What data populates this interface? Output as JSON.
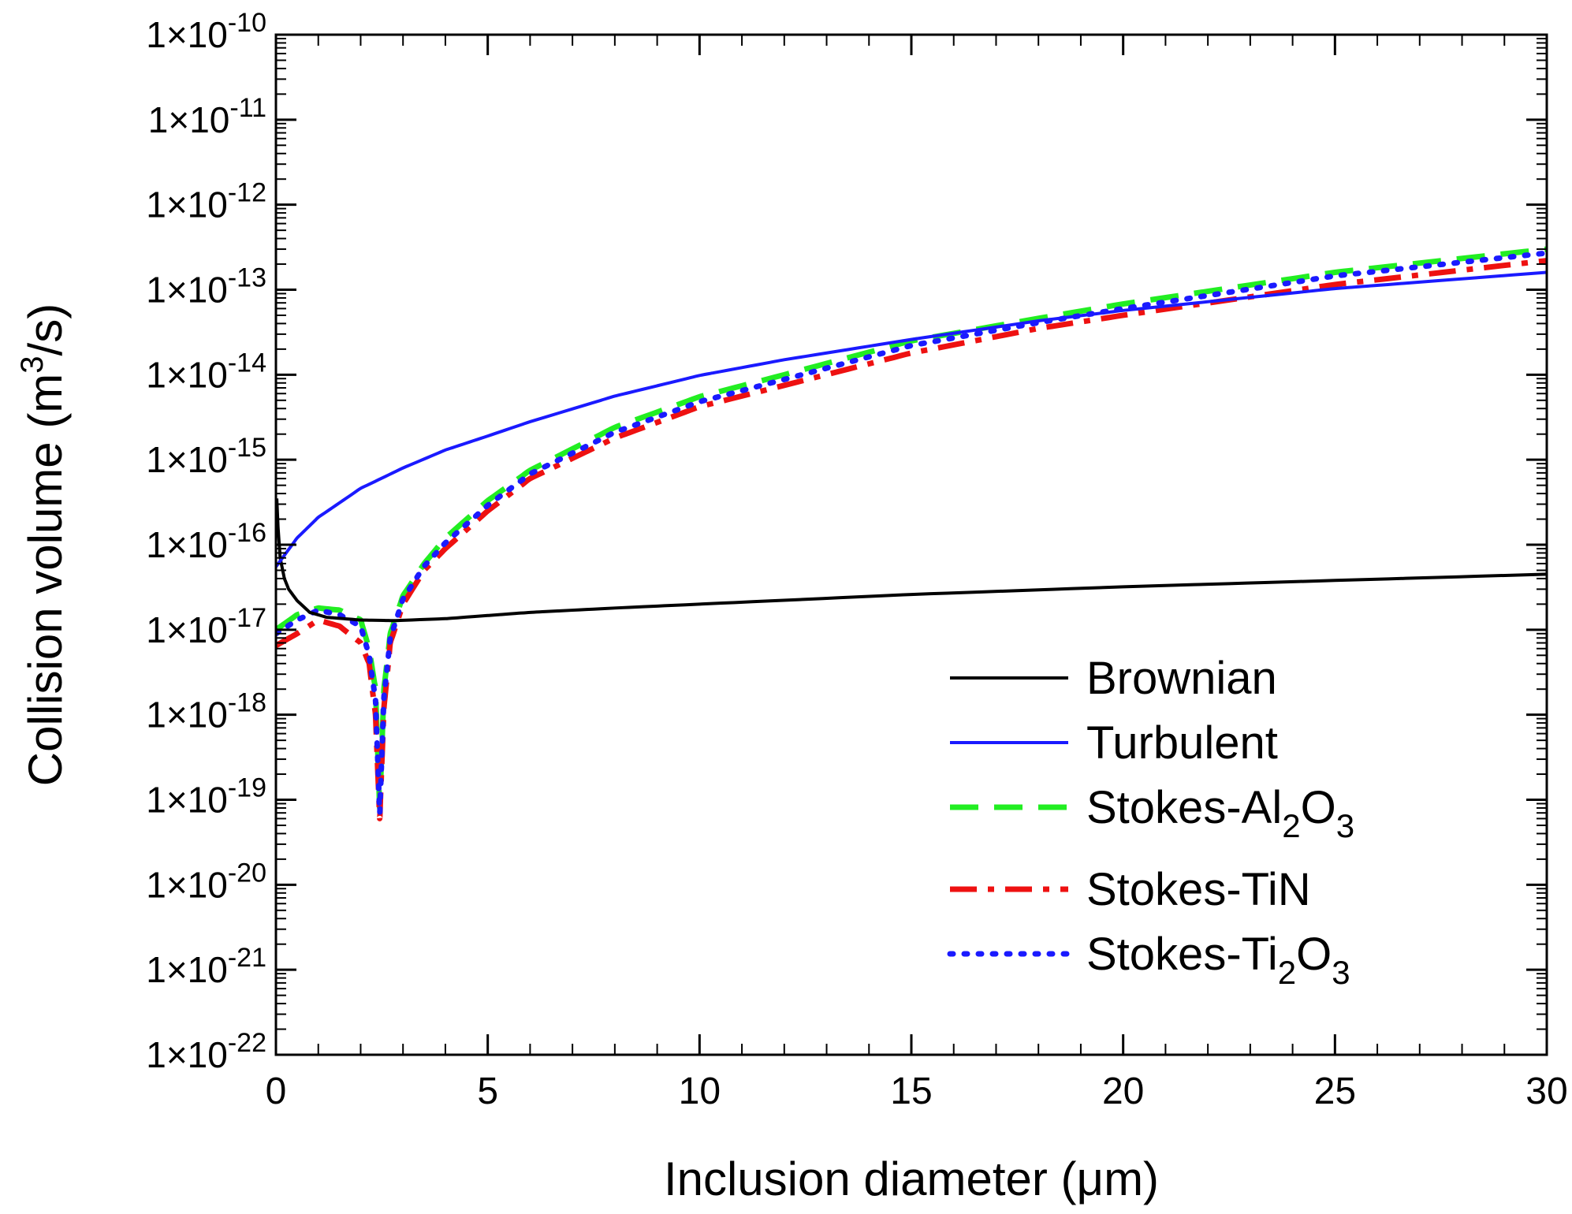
{
  "chart_data": {
    "type": "line",
    "xlabel": "Inclusion diameter (μm)",
    "ylabel": {
      "prefix": "Collision volume (m",
      "sup": "3",
      "suffix": "/s)"
    },
    "x_axis": {
      "range": [
        0,
        30
      ],
      "major_ticks": [
        0,
        5,
        10,
        15,
        20,
        25,
        30
      ],
      "minor_step": 1
    },
    "y_axis": {
      "scale": "log",
      "range": [
        1e-22,
        1e-10
      ],
      "tick_exponents": [
        -10,
        -11,
        -12,
        -13,
        -14,
        -15,
        -16,
        -17,
        -18,
        -19,
        -20,
        -21,
        -22
      ],
      "tick_mantissa": "1×10"
    },
    "legend": {
      "position": "bottom-right",
      "entries": [
        {
          "series": "brownian",
          "parts": [
            "Brownian"
          ]
        },
        {
          "series": "turbulent",
          "parts": [
            "Turbulent"
          ]
        },
        {
          "series": "stokes_al2o3",
          "parts": [
            "Stokes-Al",
            "2",
            "O",
            "3"
          ]
        },
        {
          "series": "stokes_tin",
          "parts": [
            "Stokes-TiN"
          ]
        },
        {
          "series": "stokes_ti2o3",
          "parts": [
            "Stokes-Ti",
            "2",
            "O",
            "3"
          ]
        }
      ]
    },
    "series": [
      {
        "id": "brownian",
        "name": "Brownian",
        "color": "#000000",
        "dash": "solid",
        "x": [
          0.02,
          0.05,
          0.1,
          0.2,
          0.3,
          0.5,
          0.8,
          1.2,
          2,
          2.8,
          4,
          6,
          8,
          10,
          15,
          20,
          25,
          30
        ],
        "y": [
          3.5e-16,
          1.6e-16,
          7e-17,
          4e-17,
          3e-17,
          2.2e-17,
          1.6e-17,
          1.4e-17,
          1.3e-17,
          1.28e-17,
          1.35e-17,
          1.6e-17,
          1.8e-17,
          2e-17,
          2.6e-17,
          3.2e-17,
          3.8e-17,
          4.5e-17
        ]
      },
      {
        "id": "turbulent",
        "name": "Turbulent",
        "color": "#1a1aff",
        "dash": "solid",
        "x": [
          0,
          0.5,
          1,
          2,
          3,
          4,
          5,
          6,
          8,
          10,
          12,
          15,
          18,
          20,
          25,
          30
        ],
        "y": [
          5.5e-17,
          1.2e-16,
          2.1e-16,
          4.6e-16,
          8e-16,
          1.3e-15,
          1.9e-15,
          2.8e-15,
          5.6e-15,
          9.8e-15,
          1.5e-14,
          2.6e-14,
          4.3e-14,
          5.7e-14,
          1.03e-13,
          1.6e-13
        ]
      },
      {
        "id": "stokes_al2o3",
        "name": "Stokes-Al2O3",
        "color": "#22ee22",
        "dash": "dashed",
        "x": [
          0,
          0.5,
          1,
          1.5,
          2,
          2.2,
          2.35,
          2.45,
          2.55,
          2.7,
          3,
          3.5,
          4,
          5,
          6,
          8,
          10,
          12,
          15,
          18,
          20,
          25,
          30
        ],
        "y": [
          1e-17,
          1.5e-17,
          1.8e-17,
          1.7e-17,
          1.3e-17,
          6e-18,
          2e-18,
          8e-20,
          2e-18,
          9e-18,
          2.5e-17,
          6e-17,
          1.2e-16,
          3.3e-16,
          7.5e-16,
          2.4e-15,
          5.5e-15,
          1e-14,
          2.5e-14,
          4.6e-14,
          6.8e-14,
          1.6e-13,
          3e-13
        ]
      },
      {
        "id": "stokes_tin",
        "name": "Stokes-TiN",
        "color": "#ee1111",
        "dash": "dashdot",
        "x": [
          0,
          0.5,
          1,
          1.5,
          2,
          2.2,
          2.35,
          2.45,
          2.55,
          2.7,
          3,
          3.5,
          4,
          5,
          6,
          8,
          10,
          12,
          15,
          18,
          20,
          25,
          30
        ],
        "y": [
          6.5e-18,
          9e-18,
          1.3e-17,
          1.1e-17,
          7e-18,
          4e-18,
          1e-18,
          6e-20,
          1.2e-18,
          7e-18,
          2e-17,
          5e-17,
          9e-17,
          2.5e-16,
          6e-16,
          1.8e-15,
          4.2e-15,
          7.5e-15,
          1.8e-14,
          3.5e-14,
          5e-14,
          1.15e-13,
          2.2e-13
        ]
      },
      {
        "id": "stokes_ti2o3",
        "name": "Stokes-Ti2O3",
        "color": "#1a1aff",
        "dash": "dotted",
        "x": [
          0,
          0.5,
          1,
          1.5,
          2,
          2.2,
          2.35,
          2.45,
          2.55,
          2.7,
          3,
          3.5,
          4,
          5,
          6,
          8,
          10,
          12,
          15,
          18,
          20,
          25,
          30
        ],
        "y": [
          9e-18,
          1.3e-17,
          1.7e-17,
          1.5e-17,
          1.1e-17,
          5e-18,
          1.5e-18,
          7e-20,
          1.6e-18,
          8e-18,
          2.3e-17,
          5.6e-17,
          1.05e-16,
          2.9e-16,
          6.8e-16,
          2.1e-15,
          4.8e-15,
          8.8e-15,
          2.2e-14,
          4.1e-14,
          6e-14,
          1.45e-13,
          2.7e-13
        ]
      }
    ]
  }
}
